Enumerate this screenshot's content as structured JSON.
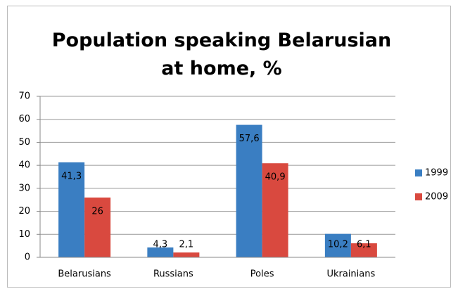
{
  "chart_data": {
    "type": "bar",
    "title": "Population speaking Belarusian at home, %",
    "categories": [
      "Belarusians",
      "Russians",
      "Poles",
      "Ukrainians"
    ],
    "series": [
      {
        "name": "1999",
        "color": "#3a7ec2",
        "values": [
          41.3,
          4.3,
          57.6,
          10.2
        ],
        "value_labels": [
          "41,3",
          "4,3",
          "57,6",
          "10,2"
        ]
      },
      {
        "name": "2009",
        "color": "#d9493f",
        "values": [
          26,
          2.1,
          40.9,
          6.1
        ],
        "value_labels": [
          "26",
          "2,1",
          "40,9",
          "6,1"
        ]
      }
    ],
    "ylim": [
      0,
      70
    ],
    "yticks": [
      0,
      10,
      20,
      30,
      40,
      50,
      60,
      70
    ],
    "grid": true,
    "legend": "right"
  }
}
